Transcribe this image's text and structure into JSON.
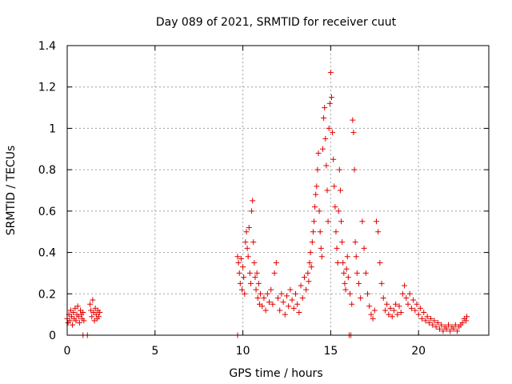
{
  "chart_data": {
    "type": "scatter",
    "title": "Day 089 of 2021, SRMTID for receiver cuut",
    "xlabel": "GPS time / hours",
    "ylabel": "SRMTID / TECUs",
    "xlim": [
      0,
      24
    ],
    "ylim": [
      0,
      1.4
    ],
    "xticks": [
      0,
      5,
      10,
      15,
      20
    ],
    "xtick_labels": [
      "0",
      "5",
      "10",
      "15",
      "20"
    ],
    "yticks": [
      0,
      0.2,
      0.4,
      0.6,
      0.8,
      1.0,
      1.2,
      1.4
    ],
    "ytick_labels": [
      "0",
      "0.2",
      "0.4",
      "0.6",
      "0.8",
      "1",
      "1.2",
      "1.4"
    ],
    "grid": true,
    "marker": "+",
    "color": "#e00000",
    "series": [
      {
        "name": "SRMTID",
        "points": [
          [
            0.0,
            0.08
          ],
          [
            0.05,
            0.06
          ],
          [
            0.1,
            0.1
          ],
          [
            0.15,
            0.07
          ],
          [
            0.2,
            0.12
          ],
          [
            0.25,
            0.09
          ],
          [
            0.3,
            0.05
          ],
          [
            0.35,
            0.11
          ],
          [
            0.4,
            0.08
          ],
          [
            0.45,
            0.13
          ],
          [
            0.5,
            0.07
          ],
          [
            0.55,
            0.1
          ],
          [
            0.6,
            0.14
          ],
          [
            0.65,
            0.09
          ],
          [
            0.7,
            0.06
          ],
          [
            0.75,
            0.12
          ],
          [
            0.8,
            0.1
          ],
          [
            0.85,
            0.08
          ],
          [
            0.9,
            0.11
          ],
          [
            0.95,
            0.07
          ],
          [
            1.3,
            0.15
          ],
          [
            1.35,
            0.12
          ],
          [
            1.4,
            0.09
          ],
          [
            1.45,
            0.17
          ],
          [
            1.5,
            0.11
          ],
          [
            1.55,
            0.07
          ],
          [
            1.6,
            0.13
          ],
          [
            1.65,
            0.1
          ],
          [
            1.7,
            0.08
          ],
          [
            1.75,
            0.12
          ],
          [
            1.8,
            0.09
          ],
          [
            1.85,
            0.11
          ],
          [
            0.9,
            0.0
          ],
          [
            1.15,
            0.0
          ],
          [
            9.7,
            0.0
          ],
          [
            16.05,
            0.0
          ],
          [
            16.15,
            0.0
          ],
          [
            9.7,
            0.38
          ],
          [
            9.75,
            0.35
          ],
          [
            9.8,
            0.3
          ],
          [
            9.85,
            0.25
          ],
          [
            9.9,
            0.37
          ],
          [
            9.95,
            0.22
          ],
          [
            10.0,
            0.33
          ],
          [
            10.05,
            0.28
          ],
          [
            10.1,
            0.2
          ],
          [
            10.15,
            0.45
          ],
          [
            10.2,
            0.5
          ],
          [
            10.25,
            0.42
          ],
          [
            10.3,
            0.38
          ],
          [
            10.35,
            0.52
          ],
          [
            10.4,
            0.3
          ],
          [
            10.45,
            0.25
          ],
          [
            10.5,
            0.6
          ],
          [
            10.55,
            0.65
          ],
          [
            10.6,
            0.45
          ],
          [
            10.65,
            0.35
          ],
          [
            10.7,
            0.28
          ],
          [
            10.75,
            0.22
          ],
          [
            10.8,
            0.3
          ],
          [
            10.85,
            0.18
          ],
          [
            10.9,
            0.25
          ],
          [
            10.95,
            0.15
          ],
          [
            11.0,
            0.2
          ],
          [
            11.1,
            0.14
          ],
          [
            11.2,
            0.18
          ],
          [
            11.3,
            0.12
          ],
          [
            11.4,
            0.2
          ],
          [
            11.5,
            0.16
          ],
          [
            11.6,
            0.22
          ],
          [
            11.7,
            0.15
          ],
          [
            11.8,
            0.3
          ],
          [
            11.9,
            0.35
          ],
          [
            12.0,
            0.18
          ],
          [
            12.1,
            0.12
          ],
          [
            12.2,
            0.2
          ],
          [
            12.3,
            0.16
          ],
          [
            12.4,
            0.1
          ],
          [
            12.5,
            0.19
          ],
          [
            12.6,
            0.14
          ],
          [
            12.7,
            0.22
          ],
          [
            12.8,
            0.17
          ],
          [
            12.9,
            0.13
          ],
          [
            13.0,
            0.2
          ],
          [
            13.1,
            0.15
          ],
          [
            13.2,
            0.11
          ],
          [
            13.3,
            0.24
          ],
          [
            13.4,
            0.18
          ],
          [
            13.5,
            0.28
          ],
          [
            13.6,
            0.22
          ],
          [
            13.7,
            0.3
          ],
          [
            13.75,
            0.26
          ],
          [
            13.8,
            0.35
          ],
          [
            13.85,
            0.4
          ],
          [
            13.9,
            0.33
          ],
          [
            13.95,
            0.45
          ],
          [
            14.0,
            0.5
          ],
          [
            14.05,
            0.55
          ],
          [
            14.1,
            0.62
          ],
          [
            14.15,
            0.68
          ],
          [
            14.2,
            0.72
          ],
          [
            14.25,
            0.8
          ],
          [
            14.3,
            0.88
          ],
          [
            14.35,
            0.6
          ],
          [
            14.4,
            0.5
          ],
          [
            14.45,
            0.42
          ],
          [
            14.5,
            0.38
          ],
          [
            14.55,
            0.9
          ],
          [
            14.6,
            1.05
          ],
          [
            14.65,
            1.1
          ],
          [
            14.7,
            0.95
          ],
          [
            14.75,
            0.82
          ],
          [
            14.8,
            0.7
          ],
          [
            14.85,
            0.55
          ],
          [
            14.9,
            1.0
          ],
          [
            14.95,
            1.12
          ],
          [
            15.0,
            1.27
          ],
          [
            15.05,
            1.15
          ],
          [
            15.1,
            0.98
          ],
          [
            15.15,
            0.85
          ],
          [
            15.2,
            0.72
          ],
          [
            15.25,
            0.62
          ],
          [
            15.3,
            0.5
          ],
          [
            15.35,
            0.42
          ],
          [
            15.4,
            0.35
          ],
          [
            15.45,
            0.6
          ],
          [
            15.5,
            0.8
          ],
          [
            15.55,
            0.7
          ],
          [
            15.6,
            0.55
          ],
          [
            15.65,
            0.45
          ],
          [
            15.7,
            0.35
          ],
          [
            15.75,
            0.3
          ],
          [
            15.8,
            0.25
          ],
          [
            15.85,
            0.22
          ],
          [
            15.9,
            0.32
          ],
          [
            15.95,
            0.38
          ],
          [
            16.0,
            0.28
          ],
          [
            16.1,
            0.2
          ],
          [
            16.2,
            0.15
          ],
          [
            16.25,
            1.04
          ],
          [
            16.3,
            0.98
          ],
          [
            16.35,
            0.8
          ],
          [
            16.4,
            0.45
          ],
          [
            16.45,
            0.38
          ],
          [
            16.5,
            0.3
          ],
          [
            16.6,
            0.25
          ],
          [
            16.7,
            0.18
          ],
          [
            16.8,
            0.55
          ],
          [
            16.9,
            0.42
          ],
          [
            17.0,
            0.3
          ],
          [
            17.1,
            0.2
          ],
          [
            17.2,
            0.14
          ],
          [
            17.3,
            0.1
          ],
          [
            17.4,
            0.08
          ],
          [
            17.5,
            0.12
          ],
          [
            17.6,
            0.55
          ],
          [
            17.7,
            0.5
          ],
          [
            17.8,
            0.35
          ],
          [
            17.9,
            0.25
          ],
          [
            18.0,
            0.18
          ],
          [
            18.1,
            0.12
          ],
          [
            18.2,
            0.15
          ],
          [
            18.3,
            0.1
          ],
          [
            18.4,
            0.13
          ],
          [
            18.5,
            0.09
          ],
          [
            18.6,
            0.12
          ],
          [
            18.7,
            0.15
          ],
          [
            18.8,
            0.1
          ],
          [
            18.9,
            0.14
          ],
          [
            19.0,
            0.11
          ],
          [
            19.1,
            0.2
          ],
          [
            19.2,
            0.24
          ],
          [
            19.3,
            0.18
          ],
          [
            19.4,
            0.15
          ],
          [
            19.5,
            0.2
          ],
          [
            19.6,
            0.13
          ],
          [
            19.7,
            0.17
          ],
          [
            19.8,
            0.12
          ],
          [
            19.9,
            0.15
          ],
          [
            20.0,
            0.1
          ],
          [
            20.1,
            0.13
          ],
          [
            20.2,
            0.08
          ],
          [
            20.3,
            0.11
          ],
          [
            20.4,
            0.07
          ],
          [
            20.5,
            0.09
          ],
          [
            20.6,
            0.06
          ],
          [
            20.7,
            0.08
          ],
          [
            20.8,
            0.05
          ],
          [
            20.9,
            0.07
          ],
          [
            21.0,
            0.04
          ],
          [
            21.1,
            0.06
          ],
          [
            21.2,
            0.03
          ],
          [
            21.3,
            0.05
          ],
          [
            21.4,
            0.02
          ],
          [
            21.5,
            0.04
          ],
          [
            21.6,
            0.03
          ],
          [
            21.7,
            0.05
          ],
          [
            21.8,
            0.02
          ],
          [
            21.9,
            0.04
          ],
          [
            22.0,
            0.03
          ],
          [
            22.1,
            0.05
          ],
          [
            22.2,
            0.02
          ],
          [
            22.3,
            0.04
          ],
          [
            22.4,
            0.05
          ],
          [
            22.5,
            0.06
          ],
          [
            22.6,
            0.08
          ],
          [
            22.7,
            0.07
          ],
          [
            22.75,
            0.09
          ]
        ]
      }
    ]
  }
}
